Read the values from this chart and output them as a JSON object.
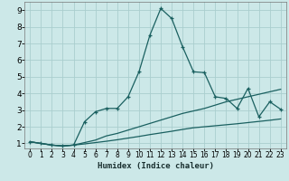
{
  "xlabel": "Humidex (Indice chaleur)",
  "ylabel": "",
  "bg_color": "#cce8e8",
  "grid_color": "#aacece",
  "line_color": "#1a6060",
  "xlim": [
    -0.5,
    23.5
  ],
  "ylim": [
    0.7,
    9.5
  ],
  "xticks": [
    0,
    1,
    2,
    3,
    4,
    5,
    6,
    7,
    8,
    9,
    10,
    11,
    12,
    13,
    14,
    15,
    16,
    17,
    18,
    19,
    20,
    21,
    22,
    23
  ],
  "yticks": [
    1,
    2,
    3,
    4,
    5,
    6,
    7,
    8,
    9
  ],
  "line1_x": [
    0,
    1,
    2,
    3,
    4,
    5,
    6,
    7,
    8,
    9,
    10,
    11,
    12,
    13,
    14,
    15,
    16,
    17,
    18,
    19,
    20,
    21,
    22,
    23
  ],
  "line1_y": [
    1.1,
    1.0,
    0.9,
    0.85,
    0.9,
    2.3,
    2.9,
    3.1,
    3.1,
    3.8,
    5.3,
    7.5,
    9.1,
    8.5,
    6.8,
    5.3,
    5.25,
    3.8,
    3.7,
    3.1,
    4.3,
    2.6,
    3.5,
    3.05
  ],
  "line2_x": [
    0,
    1,
    2,
    3,
    4,
    5,
    6,
    7,
    8,
    9,
    10,
    11,
    12,
    13,
    14,
    15,
    16,
    17,
    18,
    19,
    20,
    21,
    22,
    23
  ],
  "line2_y": [
    1.1,
    1.0,
    0.9,
    0.85,
    0.9,
    1.05,
    1.2,
    1.45,
    1.6,
    1.8,
    2.0,
    2.2,
    2.4,
    2.6,
    2.8,
    2.95,
    3.1,
    3.3,
    3.5,
    3.65,
    3.8,
    3.95,
    4.1,
    4.25
  ],
  "line3_x": [
    0,
    1,
    2,
    3,
    4,
    5,
    6,
    7,
    8,
    9,
    10,
    11,
    12,
    13,
    14,
    15,
    16,
    17,
    18,
    19,
    20,
    21,
    22,
    23
  ],
  "line3_y": [
    1.1,
    1.0,
    0.9,
    0.85,
    0.9,
    0.97,
    1.05,
    1.13,
    1.22,
    1.32,
    1.42,
    1.53,
    1.63,
    1.73,
    1.84,
    1.94,
    2.0,
    2.06,
    2.12,
    2.18,
    2.25,
    2.32,
    2.39,
    2.47
  ],
  "figsize": [
    3.2,
    2.0
  ],
  "dpi": 100
}
